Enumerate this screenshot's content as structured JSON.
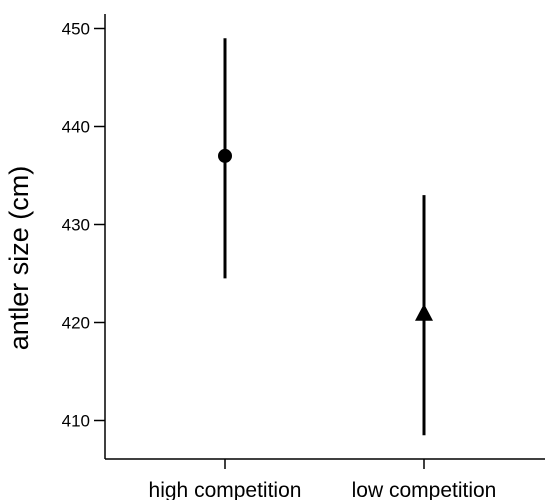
{
  "chart_data": {
    "type": "scatter",
    "title": "",
    "xlabel": "",
    "ylabel": "antler size (cm)",
    "ylim": [
      406,
      452
    ],
    "yticks": [
      410,
      420,
      430,
      440,
      450
    ],
    "grid": false,
    "legend": "none",
    "categories": [
      "high competition",
      "low competition"
    ],
    "points": [
      {
        "category": "high competition",
        "value": 437,
        "lower": 424.5,
        "upper": 449,
        "marker": "circle"
      },
      {
        "category": "low competition",
        "value": 421,
        "lower": 408.5,
        "upper": 433,
        "marker": "triangle"
      }
    ],
    "color": "#000000"
  }
}
